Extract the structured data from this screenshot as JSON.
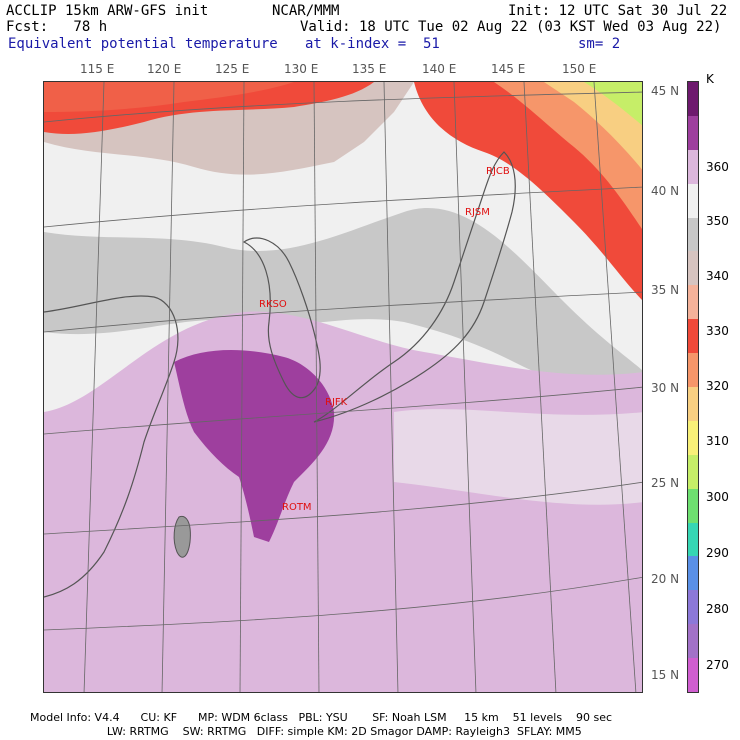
{
  "header": {
    "line1_left": "ACCLIP 15km ARW-GFS init",
    "line1_mid": "NCAR/MMM",
    "line1_right": "Init: 12 UTC Sat 30 Jul 22",
    "line2_left": "Fcst:   78 h",
    "line2_right": "Valid: 18 UTC Tue 02 Aug 22 (03 KST Wed 03 Aug 22)",
    "line3_left": "Equivalent potential temperature",
    "line3_mid": "at k-index =  51",
    "line3_right": "sm= 2"
  },
  "longitude_labels": [
    "115 E",
    "120 E",
    "125 E",
    "130 E",
    "135 E",
    "140 E",
    "145 E",
    "150 E"
  ],
  "latitude_labels": [
    "45 N",
    "40 N",
    "35 N",
    "30 N",
    "25 N",
    "20 N",
    "15 N"
  ],
  "stations": [
    "RJCB",
    "RJSM",
    "RKSO",
    "RJFK",
    "ROTM"
  ],
  "colorbar": {
    "unit": "K",
    "labels": [
      "360",
      "350",
      "340",
      "330",
      "320",
      "310",
      "300",
      "290",
      "280",
      "270"
    ],
    "colors": [
      "#6e1a6e",
      "#9e3f9e",
      "#dcb7dc",
      "#f0f0f0",
      "#c8c8c8",
      "#d6c4c0",
      "#f4b29a",
      "#f04a3a",
      "#f6966a",
      "#f8cf82",
      "#f8f078",
      "#c6ee68",
      "#6ee070",
      "#36d6b4",
      "#5a90e6",
      "#8c78d8",
      "#a272c8",
      "#d05ed0"
    ]
  },
  "footer": {
    "line1": "Model Info: V4.4      CU: KF      MP: WDM 6class   PBL: YSU       SF: Noah LSM     15 km    51 levels    90 sec",
    "line2": "                      LW: RRTMG    SW: RRTMG   DIFF: simple KM: 2D Smagor DAMP: Rayleigh3  SFLAY: MM5"
  }
}
